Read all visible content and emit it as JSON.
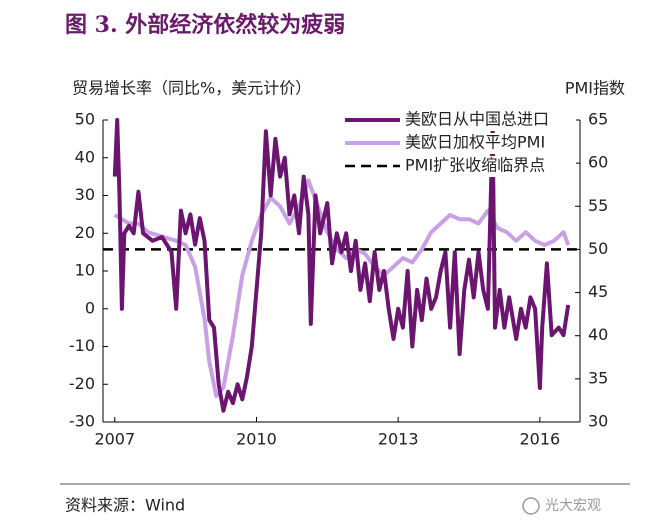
{
  "chart_data": {
    "type": "line",
    "title": "图 3. 外部经济依然较为疲弱",
    "y_label": "贸易增长率（同比%，美元计价）",
    "y2_label": "PMI指数",
    "source": "资料来源：Wind",
    "watermark": "光大宏观",
    "xlim": [
      2006.75,
      2016.85
    ],
    "xticks": [
      2007,
      2010,
      2013,
      2016
    ],
    "ylim": [
      -30,
      50
    ],
    "yticks": [
      -30,
      -20,
      -10,
      0,
      10,
      20,
      30,
      40,
      50
    ],
    "y2lim": [
      30,
      65
    ],
    "y2ticks": [
      30,
      35,
      40,
      45,
      50,
      55,
      60,
      65
    ],
    "series": [
      {
        "name": "美欧日从中国总进口",
        "color": "#6b1470",
        "width": 4,
        "x": [
          2007.0,
          2007.05,
          2007.1,
          2007.15,
          2007.2,
          2007.3,
          2007.4,
          2007.5,
          2007.6,
          2007.8,
          2008.0,
          2008.2,
          2008.3,
          2008.4,
          2008.5,
          2008.6,
          2008.7,
          2008.8,
          2008.9,
          2009.0,
          2009.1,
          2009.2,
          2009.3,
          2009.4,
          2009.5,
          2009.6,
          2009.7,
          2009.8,
          2009.9,
          2010.0,
          2010.1,
          2010.2,
          2010.3,
          2010.4,
          2010.5,
          2010.6,
          2010.7,
          2010.8,
          2010.9,
          2011.0,
          2011.1,
          2011.15,
          2011.25,
          2011.35,
          2011.5,
          2011.6,
          2011.7,
          2011.8,
          2011.9,
          2012.0,
          2012.1,
          2012.2,
          2012.3,
          2012.4,
          2012.5,
          2012.6,
          2012.7,
          2012.8,
          2012.9,
          2013.0,
          2013.1,
          2013.2,
          2013.3,
          2013.4,
          2013.5,
          2013.6,
          2013.7,
          2013.8,
          2013.9,
          2014.0,
          2014.1,
          2014.2,
          2014.3,
          2014.4,
          2014.5,
          2014.6,
          2014.7,
          2014.8,
          2014.9,
          2015.0,
          2015.05,
          2015.15,
          2015.25,
          2015.35,
          2015.5,
          2015.6,
          2015.7,
          2015.8,
          2015.9,
          2016.0,
          2016.05,
          2016.15,
          2016.25,
          2016.4,
          2016.5,
          2016.6
        ],
        "values": [
          35,
          50,
          30,
          0,
          20,
          22,
          20,
          31,
          20,
          18,
          19,
          15,
          0,
          26,
          20,
          25,
          17,
          24,
          18,
          -3,
          -5,
          -20,
          -27,
          -22,
          -25,
          -20,
          -24,
          -18,
          -10,
          5,
          20,
          47,
          30,
          45,
          35,
          40,
          25,
          30,
          20,
          35,
          25,
          -4,
          30,
          20,
          28,
          12,
          20,
          15,
          20,
          10,
          18,
          5,
          12,
          2,
          15,
          5,
          10,
          0,
          -8,
          0,
          -5,
          10,
          -10,
          5,
          -3,
          8,
          0,
          3,
          10,
          15,
          -5,
          15,
          -12,
          5,
          13,
          3,
          15,
          5,
          0,
          48,
          -5,
          5,
          -5,
          3,
          -8,
          0,
          -5,
          3,
          0,
          -21,
          -5,
          12,
          -7,
          -5,
          -7,
          1
        ]
      },
      {
        "name": "美欧日加权平均PMI",
        "color": "#c9a0e6",
        "width": 4,
        "axis": "y2",
        "x": [
          2007.0,
          2007.3,
          2007.5,
          2007.7,
          2008.0,
          2008.3,
          2008.5,
          2008.7,
          2008.9,
          2009.0,
          2009.15,
          2009.3,
          2009.5,
          2009.7,
          2009.9,
          2010.1,
          2010.3,
          2010.5,
          2010.7,
          2010.9,
          2011.1,
          2011.3,
          2011.5,
          2011.7,
          2011.9,
          2012.1,
          2012.3,
          2012.5,
          2012.7,
          2012.9,
          2013.1,
          2013.3,
          2013.5,
          2013.7,
          2013.9,
          2014.1,
          2014.3,
          2014.5,
          2014.7,
          2014.9,
          2015.1,
          2015.3,
          2015.5,
          2015.7,
          2015.9,
          2016.1,
          2016.3,
          2016.5,
          2016.6
        ],
        "values": [
          54,
          53,
          53,
          52,
          51.5,
          51,
          50.5,
          48,
          42,
          37,
          33,
          34,
          40,
          47,
          51,
          54,
          56,
          55,
          53,
          55,
          58,
          55,
          52,
          50,
          49,
          50,
          49.5,
          48,
          47,
          48,
          49,
          48.5,
          50,
          52,
          53,
          54,
          53.5,
          53.5,
          53,
          54.5,
          52.5,
          52,
          51,
          52,
          51,
          50.5,
          51,
          52,
          50.5
        ]
      }
    ],
    "reference_line": {
      "name": "PMI扩张收缩临界点",
      "value": 50,
      "axis": "y2",
      "color": "#000000"
    }
  }
}
